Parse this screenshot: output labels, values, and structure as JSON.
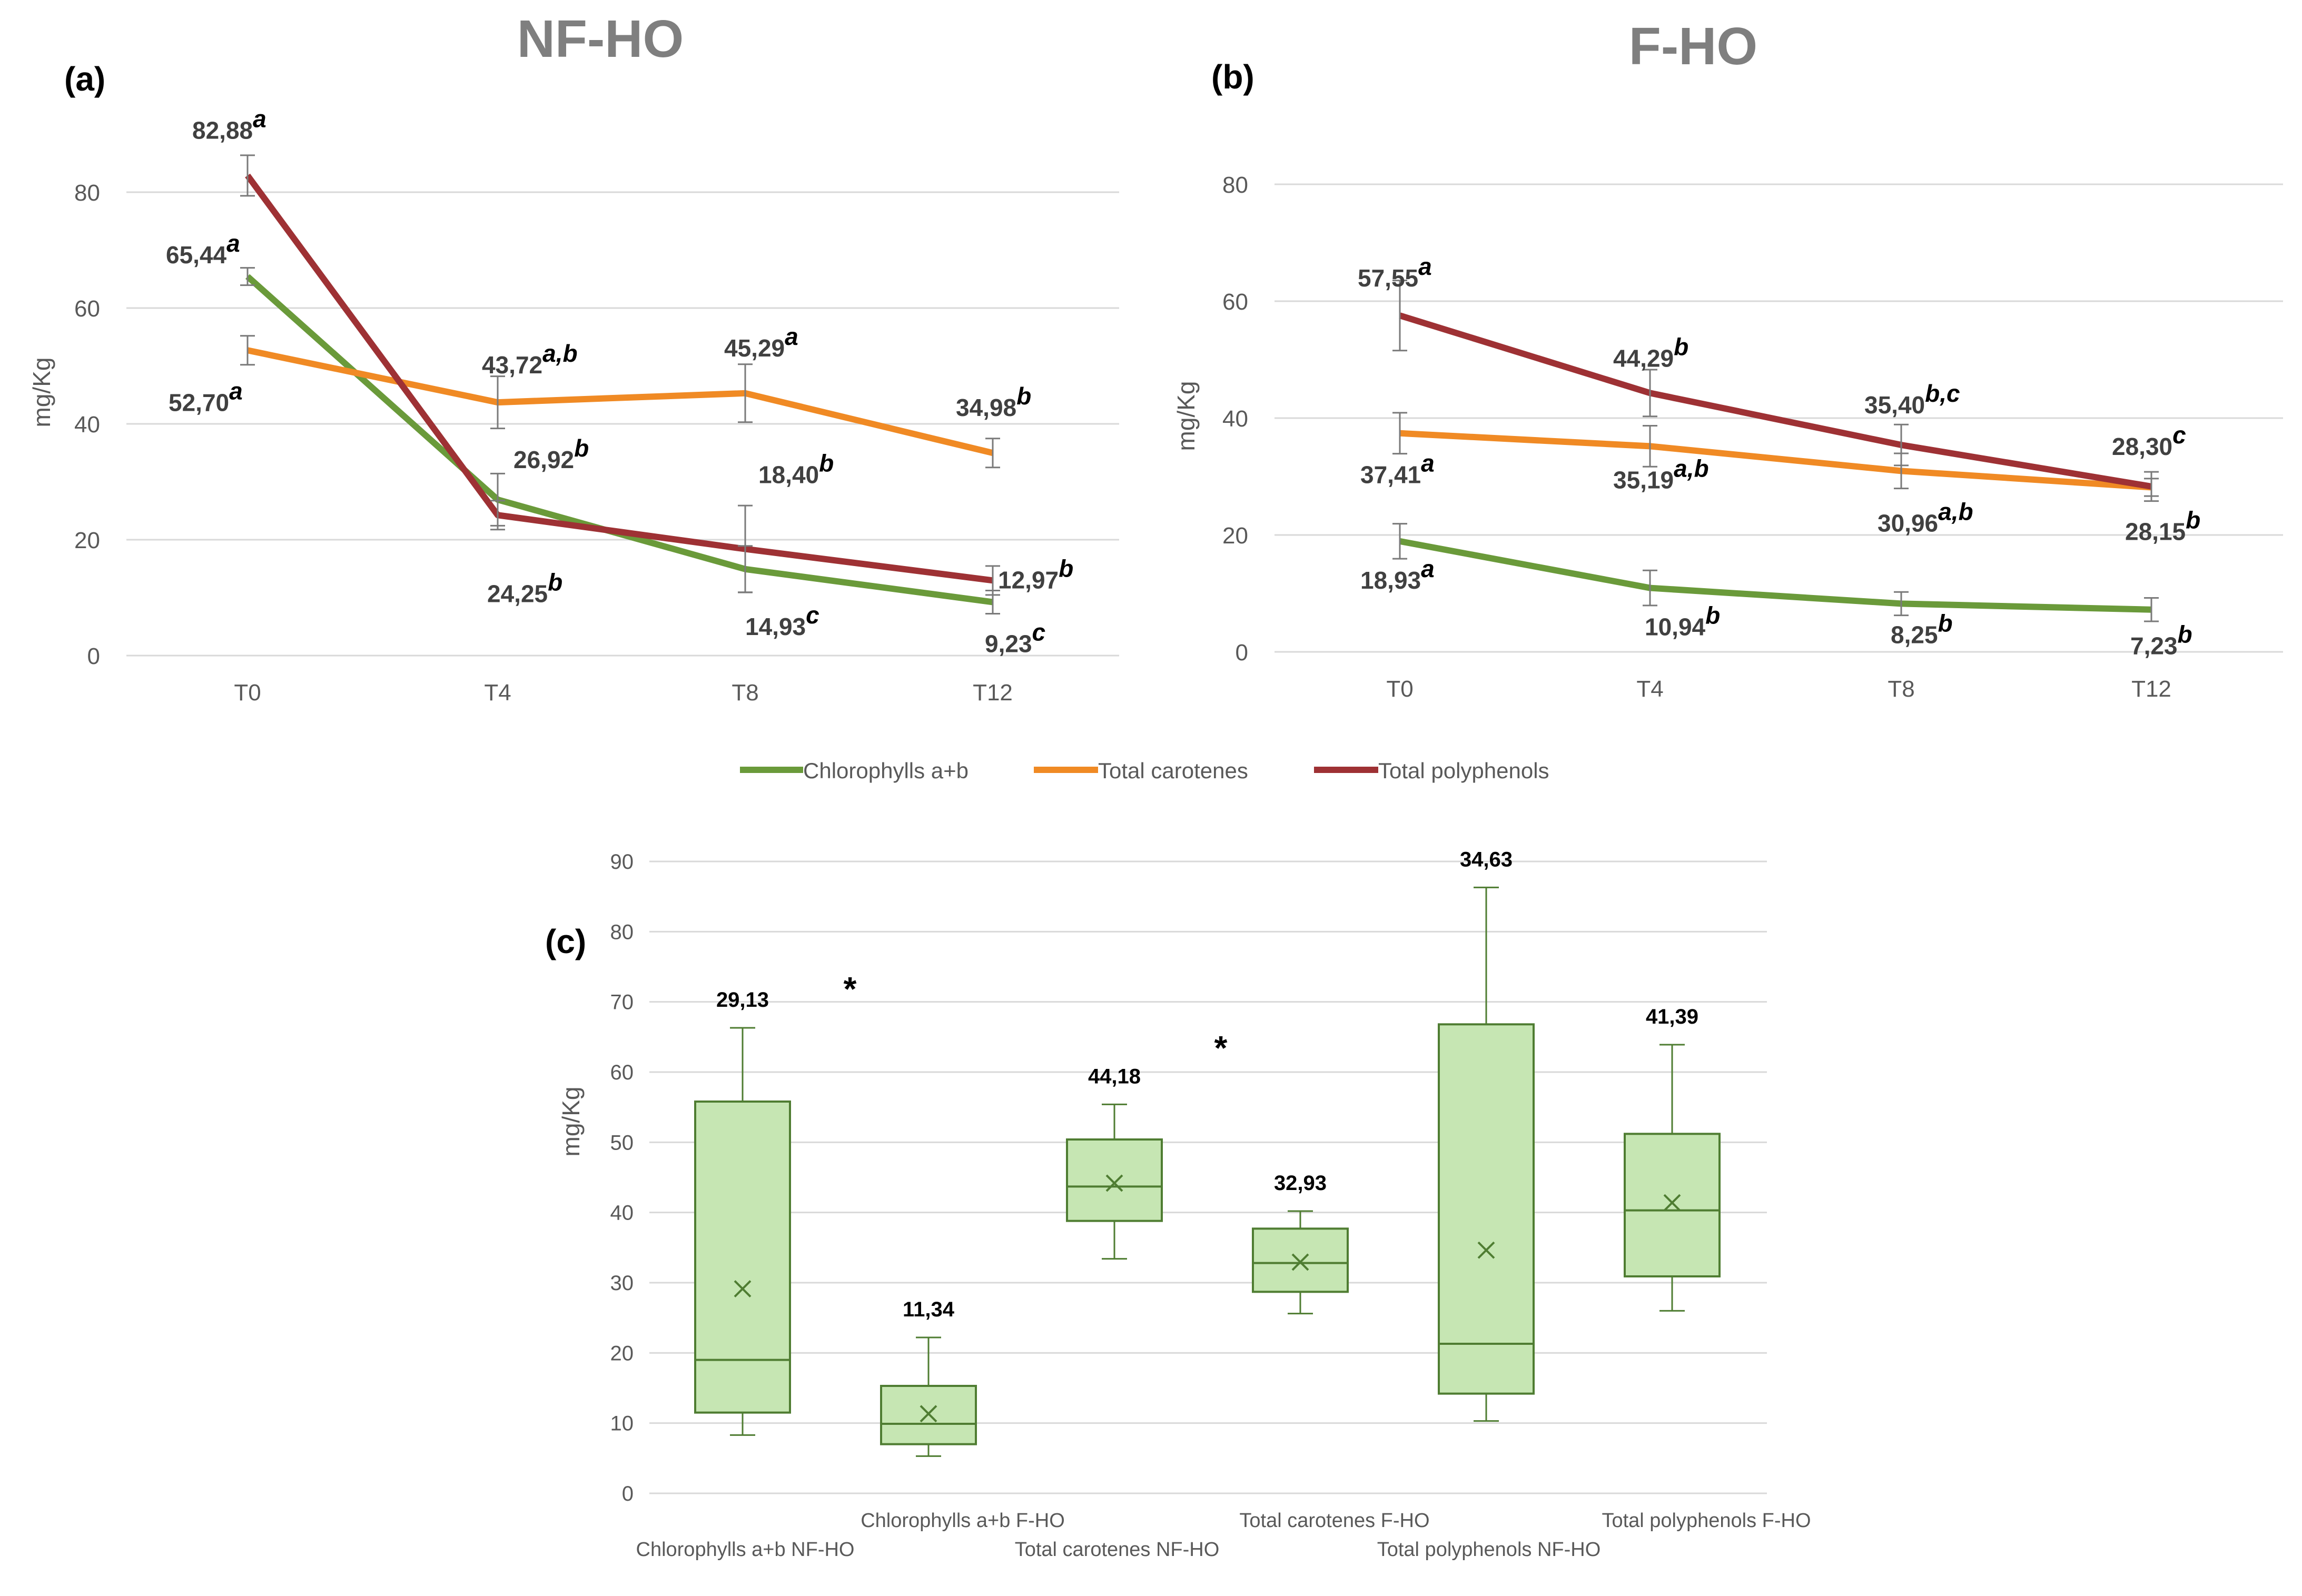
{
  "figure": {
    "titles": {
      "a": "NF-HO",
      "b": "F-HO"
    },
    "panel_labels": {
      "a": "(a)",
      "b": "(b)",
      "c": "(c)"
    },
    "legend": [
      "Chlorophylls a+b",
      "Total carotenes",
      "Total polyphenols"
    ],
    "colors": {
      "chlorophylls": "#6a9a3a",
      "carotenes": "#f08a24",
      "polyphenols": "#9e3134",
      "box_fill": "#c6e6b3",
      "box_stroke": "#4f7d32",
      "grid": "#d9d9d9",
      "axis_text": "#595959",
      "title": "#7f7f7f",
      "value_text": "#404040"
    }
  },
  "chart_data": [
    {
      "panel": "a",
      "type": "line",
      "title": "NF-HO",
      "xlabel": "",
      "ylabel": "mg/Kg",
      "categories": [
        "T0",
        "T4",
        "T8",
        "T12"
      ],
      "ylim": [
        0,
        80
      ],
      "yticks": [
        0,
        20,
        40,
        60,
        80
      ],
      "grid": true,
      "legend_position": "bottom",
      "series": [
        {
          "name": "Chlorophylls a+b",
          "values": [
            65.44,
            26.92,
            14.93,
            9.23
          ],
          "labels": [
            "65,44",
            "26,92",
            "14,93",
            "9,23"
          ],
          "letters": [
            "a",
            "b",
            "c",
            "c"
          ],
          "errors": [
            1.5,
            4.5,
            4,
            2
          ]
        },
        {
          "name": "Total carotenes",
          "values": [
            52.7,
            43.72,
            45.29,
            34.98
          ],
          "labels": [
            "52,70",
            "43,72",
            "45,29",
            "34,98"
          ],
          "letters": [
            "a",
            "a,b",
            "a",
            "b"
          ],
          "errors": [
            2.5,
            4.5,
            5,
            2.5
          ]
        },
        {
          "name": "Total polyphenols",
          "values": [
            82.88,
            24.25,
            18.4,
            12.97
          ],
          "labels": [
            "82,88",
            "24,25",
            "18,40",
            "12,97"
          ],
          "letters": [
            "a",
            "b",
            "b",
            "b"
          ],
          "errors": [
            3.5,
            2.5,
            7.5,
            2.5
          ]
        }
      ]
    },
    {
      "panel": "b",
      "type": "line",
      "title": "F-HO",
      "xlabel": "",
      "ylabel": "mg/Kg",
      "categories": [
        "T0",
        "T4",
        "T8",
        "T12"
      ],
      "ylim": [
        0,
        80
      ],
      "yticks": [
        0,
        20,
        40,
        60,
        80
      ],
      "grid": true,
      "legend_position": "bottom",
      "series": [
        {
          "name": "Chlorophylls a+b",
          "values": [
            18.93,
            10.94,
            8.25,
            7.23
          ],
          "labels": [
            "18,93",
            "10,94",
            "8,25",
            "7,23"
          ],
          "letters": [
            "a",
            "b",
            "b",
            "b"
          ],
          "errors": [
            3,
            3,
            2,
            2
          ]
        },
        {
          "name": "Total carotenes",
          "values": [
            37.41,
            35.19,
            30.96,
            28.15
          ],
          "labels": [
            "37,41",
            "35,19",
            "30,96",
            "28,15"
          ],
          "letters": [
            "a",
            "a,b",
            "a,b",
            "b"
          ],
          "errors": [
            3.5,
            3.5,
            3,
            1.5
          ]
        },
        {
          "name": "Total polyphenols",
          "values": [
            57.55,
            44.29,
            35.4,
            28.3
          ],
          "labels": [
            "57,55",
            "44,29",
            "35,40",
            "28,30"
          ],
          "letters": [
            "a",
            "b",
            "b,c",
            "c"
          ],
          "errors": [
            6,
            4,
            3.5,
            2.5
          ]
        }
      ]
    },
    {
      "panel": "c",
      "type": "box",
      "xlabel": "",
      "ylabel": "mg/Kg",
      "ylim": [
        0,
        90
      ],
      "yticks": [
        0,
        10,
        20,
        30,
        40,
        50,
        60,
        70,
        80,
        90
      ],
      "grid": true,
      "categories": [
        "Chlorophylls a+b NF-HO",
        "Chlorophylls a+b F-HO",
        "Total carotenes NF-HO",
        "Total carotenes F-HO",
        "Total polyphenols NF-HO",
        "Total polyphenols F-HO"
      ],
      "boxes": [
        {
          "min": 8.3,
          "q1": 11.5,
          "median": 19,
          "q3": 55.8,
          "max": 66.3,
          "mean": 29.13,
          "mean_label": "29,13"
        },
        {
          "min": 5.3,
          "q1": 7,
          "median": 9.9,
          "q3": 15.3,
          "max": 22.2,
          "mean": 11.34,
          "mean_label": "11,34"
        },
        {
          "min": 33.4,
          "q1": 38.8,
          "median": 43.7,
          "q3": 50.4,
          "max": 55.4,
          "mean": 44.18,
          "mean_label": "44,18"
        },
        {
          "min": 25.6,
          "q1": 28.7,
          "median": 32.8,
          "q3": 37.7,
          "max": 40.2,
          "mean": 32.93,
          "mean_label": "32,93"
        },
        {
          "min": 10.3,
          "q1": 14.2,
          "median": 21.3,
          "q3": 66.8,
          "max": 86.3,
          "mean": 34.63,
          "mean_label": "34,63"
        },
        {
          "min": 26,
          "q1": 30.9,
          "median": 40.3,
          "q3": 51.2,
          "max": 63.9,
          "mean": 41.39,
          "mean_label": "41,39"
        }
      ],
      "significance": [
        {
          "between": [
            0,
            1
          ],
          "mark": "*"
        },
        {
          "between": [
            2,
            3
          ],
          "mark": "*"
        }
      ]
    }
  ]
}
